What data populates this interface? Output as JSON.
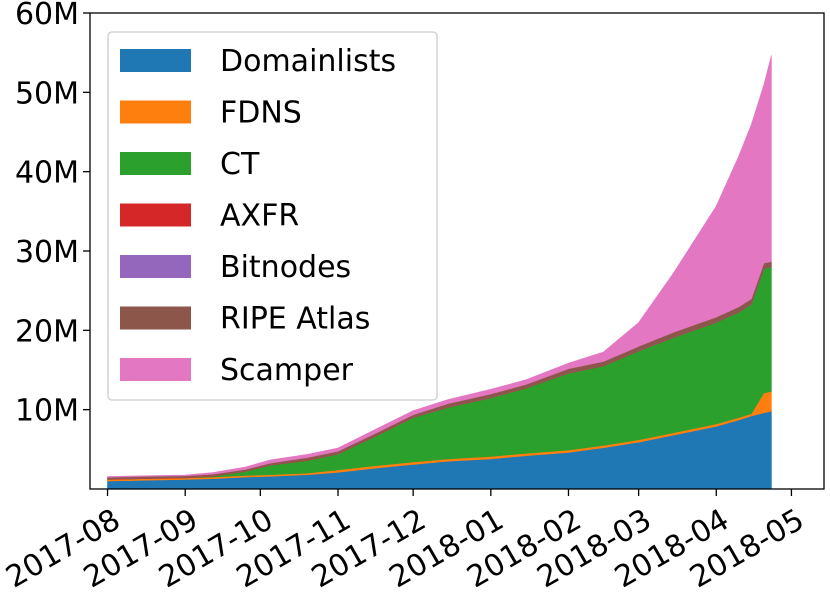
{
  "chart_data": {
    "type": "area",
    "stacked": true,
    "x_tick_labels": [
      "2017-08",
      "2017-09",
      "2017-10",
      "2017-11",
      "2017-12",
      "2018-01",
      "2018-02",
      "2018-03",
      "2018-04",
      "2018-05"
    ],
    "y_tick_labels": [
      "10M",
      "20M",
      "30M",
      "40M",
      "50M",
      "60M"
    ],
    "y_ticks": [
      10,
      20,
      30,
      40,
      50,
      60
    ],
    "ylim": [
      0,
      60
    ],
    "y_unit": "millions",
    "xlim": [
      "2017-07-25",
      "2018-05-14"
    ],
    "grid": false,
    "legend_position": "upper-left",
    "x": [
      "2017-08-01",
      "2017-08-15",
      "2017-09-01",
      "2017-09-12",
      "2017-09-25",
      "2017-10-05",
      "2017-10-20",
      "2017-11-01",
      "2017-11-15",
      "2017-12-01",
      "2017-12-15",
      "2018-01-01",
      "2018-01-15",
      "2018-02-01",
      "2018-02-15",
      "2018-03-01",
      "2018-03-15",
      "2018-04-01",
      "2018-04-10",
      "2018-04-15",
      "2018-04-20",
      "2018-04-23"
    ],
    "series": [
      {
        "name": "Domainlists",
        "color": "#1f77b4",
        "values": [
          1.0,
          1.1,
          1.2,
          1.3,
          1.5,
          1.6,
          1.8,
          2.1,
          2.6,
          3.1,
          3.5,
          3.8,
          4.2,
          4.6,
          5.2,
          5.9,
          6.8,
          7.9,
          8.7,
          9.2,
          9.6,
          9.8
        ]
      },
      {
        "name": "FDNS",
        "color": "#ff7f0e",
        "values": [
          0.2,
          0.2,
          0.2,
          0.2,
          0.2,
          0.2,
          0.2,
          0.3,
          0.3,
          0.3,
          0.3,
          0.3,
          0.3,
          0.3,
          0.3,
          0.3,
          0.3,
          0.3,
          0.3,
          0.3,
          2.5,
          2.5
        ]
      },
      {
        "name": "CT",
        "color": "#2ca02c",
        "values": [
          0.0,
          0.0,
          0.0,
          0.1,
          0.5,
          1.2,
          1.6,
          2.0,
          3.6,
          5.6,
          6.5,
          7.4,
          8.2,
          9.7,
          10.0,
          11.2,
          12.0,
          12.8,
          13.3,
          13.8,
          15.7,
          15.7
        ]
      },
      {
        "name": "AXFR",
        "color": "#d62728",
        "values": [
          0.05,
          0.05,
          0.05,
          0.05,
          0.05,
          0.05,
          0.05,
          0.05,
          0.05,
          0.05,
          0.05,
          0.05,
          0.05,
          0.05,
          0.05,
          0.05,
          0.05,
          0.05,
          0.05,
          0.05,
          0.05,
          0.05
        ]
      },
      {
        "name": "Bitnodes",
        "color": "#9467bd",
        "values": [
          0.02,
          0.02,
          0.02,
          0.02,
          0.02,
          0.02,
          0.02,
          0.02,
          0.02,
          0.02,
          0.02,
          0.02,
          0.02,
          0.02,
          0.02,
          0.02,
          0.02,
          0.02,
          0.02,
          0.02,
          0.02,
          0.02
        ]
      },
      {
        "name": "RIPE Atlas",
        "color": "#8c564b",
        "values": [
          0.2,
          0.2,
          0.2,
          0.2,
          0.2,
          0.2,
          0.3,
          0.3,
          0.3,
          0.3,
          0.4,
          0.4,
          0.4,
          0.5,
          0.5,
          0.5,
          0.6,
          0.6,
          0.6,
          0.6,
          0.6,
          0.6
        ]
      },
      {
        "name": "Scamper",
        "color": "#e377c2",
        "values": [
          0.1,
          0.1,
          0.1,
          0.2,
          0.3,
          0.4,
          0.4,
          0.4,
          0.5,
          0.5,
          0.5,
          0.6,
          0.6,
          0.7,
          1.2,
          3.0,
          7.5,
          14.0,
          19.0,
          22.0,
          22.5,
          26.0
        ]
      }
    ]
  }
}
